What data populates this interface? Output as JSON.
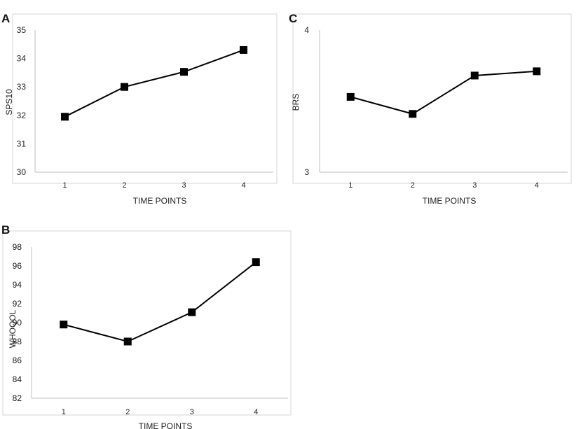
{
  "chart_data": [
    {
      "panel": "A",
      "type": "line",
      "xlabel": "TIME POINTS",
      "ylabel": "SPS10",
      "categories": [
        "1",
        "2",
        "3",
        "4"
      ],
      "values": [
        31.95,
        33.0,
        33.53,
        34.3
      ],
      "ylim": [
        30,
        35
      ],
      "yticks": [
        "30",
        "31",
        "32",
        "33",
        "34",
        "35"
      ],
      "marker": "square"
    },
    {
      "panel": "B",
      "type": "line",
      "xlabel": "TIME POINTS",
      "ylabel": "WHOQOL",
      "categories": [
        "1",
        "2",
        "3",
        "4"
      ],
      "values": [
        89.8,
        88.0,
        91.1,
        96.4
      ],
      "ylim": [
        82,
        98
      ],
      "yticks": [
        "82",
        "84",
        "86",
        "88",
        "90",
        "92",
        "94",
        "96",
        "98"
      ],
      "marker": "square"
    },
    {
      "panel": "C",
      "type": "line",
      "xlabel": "TIME POINTS",
      "ylabel": "BRS",
      "categories": [
        "1",
        "2",
        "3",
        "4"
      ],
      "values": [
        3.53,
        3.41,
        3.68,
        3.71
      ],
      "ylim": [
        3,
        4
      ],
      "yticks": [
        "3",
        "4"
      ],
      "marker": "square"
    }
  ]
}
